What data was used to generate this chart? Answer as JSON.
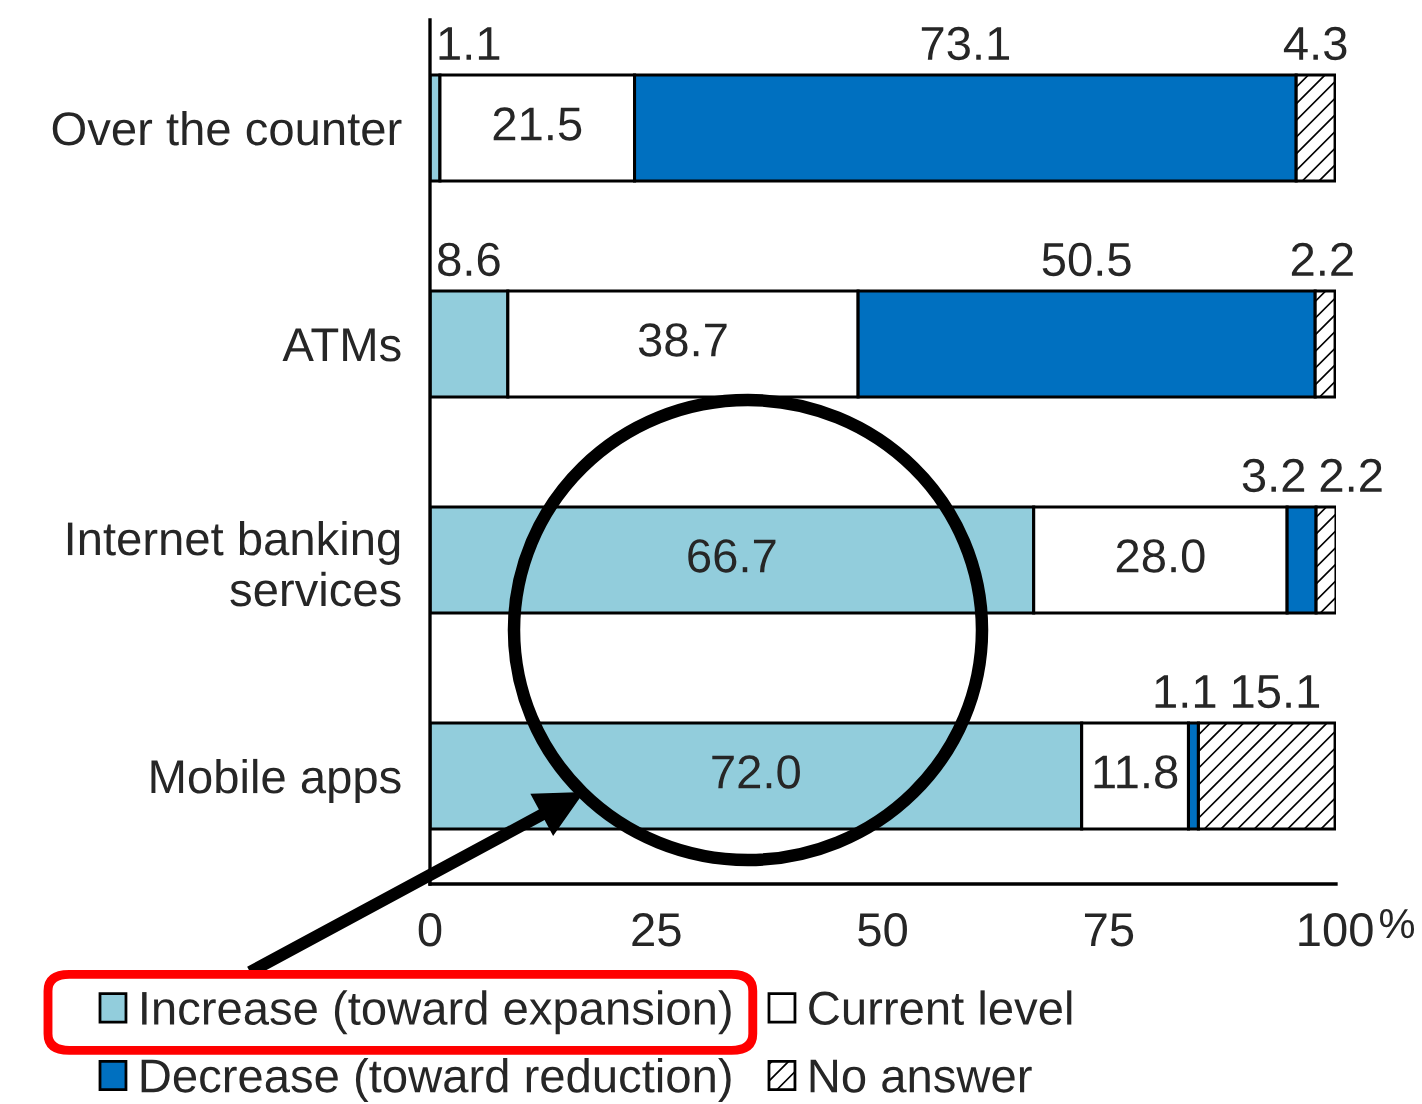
{
  "chart_data": {
    "type": "bar",
    "orientation": "horizontal",
    "stacked": true,
    "categories": [
      "Over the counter",
      "ATMs",
      "Internet banking\nservices",
      "Mobile apps"
    ],
    "series": [
      {
        "name": "Increase (toward expansion)",
        "color": "#92cddc",
        "values": [
          1.1,
          8.6,
          66.7,
          72.0
        ],
        "value_labels": [
          "1.1",
          "8.6",
          "66.7",
          "72.0"
        ]
      },
      {
        "name": "Current level",
        "color": "#ffffff",
        "values": [
          21.5,
          38.7,
          28.0,
          11.8
        ],
        "value_labels": [
          "21.5",
          "38.7",
          "28.0",
          "11.8"
        ]
      },
      {
        "name": "Decrease (toward reduction)",
        "color": "#0070c0",
        "values": [
          73.1,
          50.5,
          3.2,
          1.1
        ],
        "value_labels": [
          "73.1",
          "50.5",
          "3.2",
          "1.1"
        ]
      },
      {
        "name": "No answer",
        "color": "#ffffff",
        "values": [
          4.3,
          2.2,
          2.2,
          15.1
        ],
        "value_labels": [
          "4.3",
          "2.2",
          "2.2",
          "15.1"
        ]
      }
    ],
    "xlim": [
      0,
      100.1
    ],
    "xticks": [
      0,
      25,
      50,
      75,
      100
    ],
    "xlabel": "%",
    "legend": "bottom",
    "grid": false
  }
}
